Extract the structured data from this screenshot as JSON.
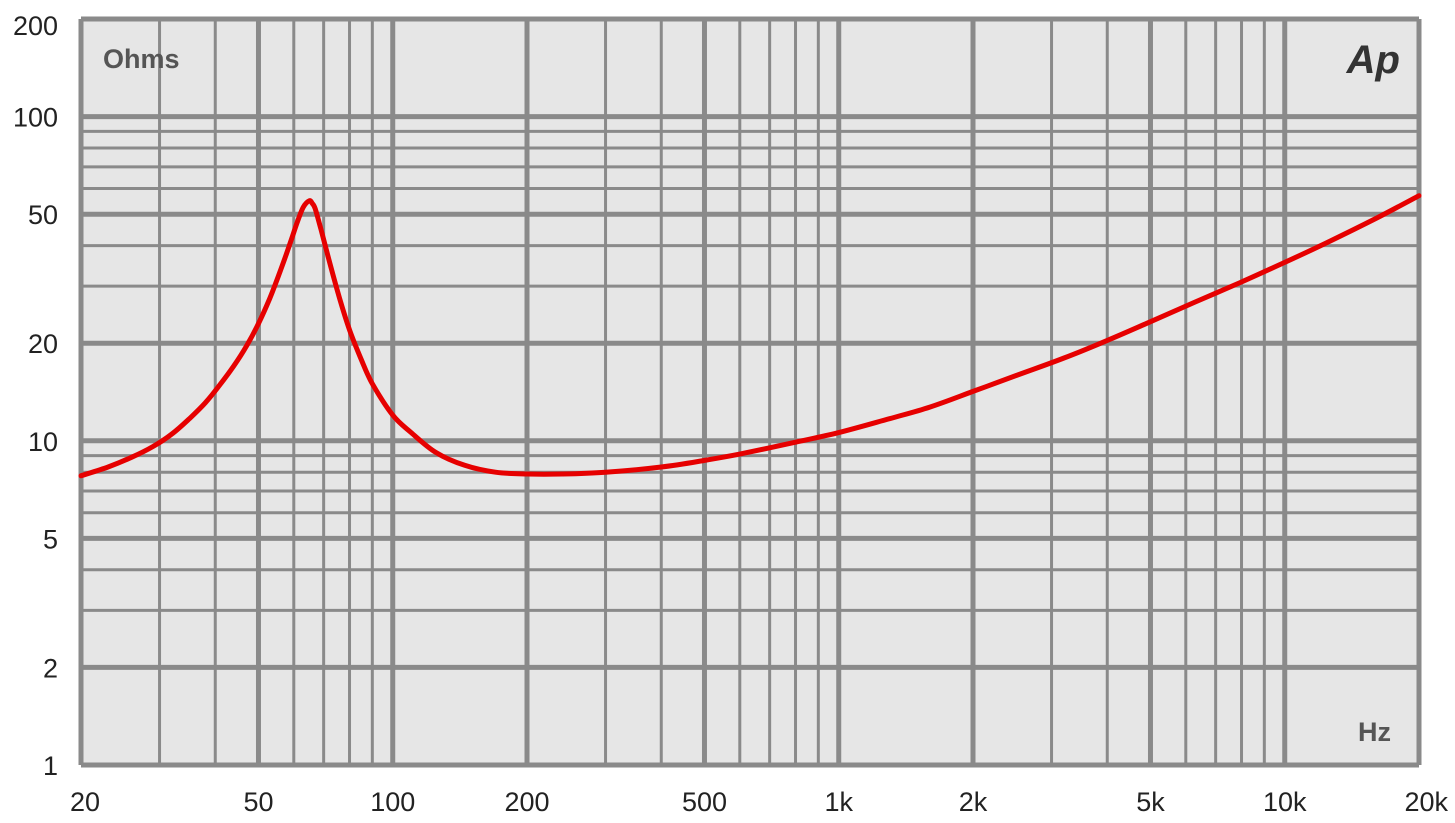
{
  "chart_data": {
    "type": "line",
    "title": "",
    "xlabel": "Hz",
    "ylabel": "Ohms",
    "x_scale": "log",
    "y_scale": "log",
    "xlim": [
      20,
      20000
    ],
    "ylim": [
      1,
      200
    ],
    "grid": true,
    "colors": {
      "background": "#e6e6e6",
      "grid": "#8a8a8a",
      "curve": "#e60000"
    },
    "x_ticks": [
      {
        "value": 20,
        "label": "20"
      },
      {
        "value": 50,
        "label": "50"
      },
      {
        "value": 100,
        "label": "100"
      },
      {
        "value": 200,
        "label": "200"
      },
      {
        "value": 500,
        "label": "500"
      },
      {
        "value": 1000,
        "label": "1k"
      },
      {
        "value": 2000,
        "label": "2k"
      },
      {
        "value": 5000,
        "label": "5k"
      },
      {
        "value": 10000,
        "label": "10k"
      },
      {
        "value": 20000,
        "label": "20k"
      }
    ],
    "y_ticks": [
      {
        "value": 1,
        "label": "1"
      },
      {
        "value": 2,
        "label": "2"
      },
      {
        "value": 5,
        "label": "5"
      },
      {
        "value": 10,
        "label": "10"
      },
      {
        "value": 20,
        "label": "20"
      },
      {
        "value": 50,
        "label": "50"
      },
      {
        "value": 100,
        "label": "100"
      },
      {
        "value": 200,
        "label": "200"
      }
    ],
    "logo": "Ap",
    "series": [
      {
        "x": [
          20,
          23,
          26,
          29,
          32,
          35,
          38,
          41,
          44,
          47,
          50,
          53,
          56,
          59,
          61,
          63,
          65,
          66,
          67,
          69,
          72,
          76,
          80,
          85,
          90,
          100,
          110,
          125,
          145,
          170,
          200,
          240,
          300,
          400,
          500,
          600,
          800,
          1000,
          1300,
          1600,
          2000,
          2500,
          3200,
          4000,
          5000,
          6300,
          8000,
          10000,
          12500,
          16000,
          20000
        ],
        "y": [
          7.8,
          8.3,
          8.9,
          9.6,
          10.5,
          11.7,
          13.1,
          14.9,
          17.0,
          19.6,
          23.0,
          27.5,
          33.5,
          41.0,
          47.0,
          52.5,
          55.0,
          54.0,
          52.0,
          45.0,
          36.0,
          27.5,
          22.0,
          17.8,
          15.0,
          12.0,
          10.6,
          9.2,
          8.4,
          8.0,
          7.9,
          7.9,
          8.0,
          8.3,
          8.7,
          9.1,
          9.9,
          10.6,
          11.7,
          12.7,
          14.2,
          15.9,
          18.0,
          20.4,
          23.3,
          26.8,
          30.9,
          35.5,
          41.0,
          48.5,
          57.0
        ]
      }
    ]
  }
}
